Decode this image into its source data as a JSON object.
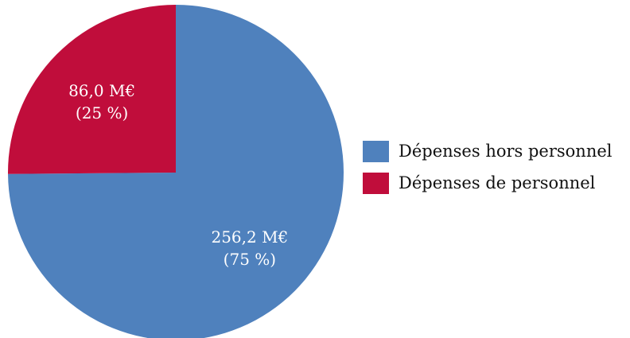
{
  "chart_data": {
    "type": "pie",
    "slices": [
      {
        "name": "Dépenses hors personnel",
        "value": 256.2,
        "value_label": "256,2 M€",
        "percent_label": "(75 %)",
        "color": "#4f81bd"
      },
      {
        "name": "Dépenses de personnel",
        "value": 86.0,
        "value_label": "86,0 M€",
        "percent_label": "(25 %)",
        "color": "#c00d3b"
      }
    ],
    "legend_position": "right",
    "start_angle": "top",
    "direction": "clockwise"
  }
}
